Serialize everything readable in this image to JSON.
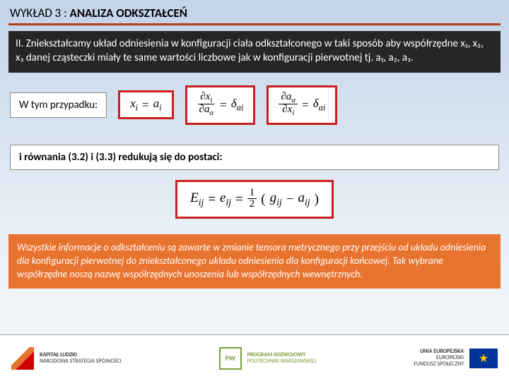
{
  "header": {
    "prefix": "WYKŁAD 3 : ",
    "title": "ANALIZA ODKSZTAŁCEŃ"
  },
  "darkbox": {
    "text": "II. Zniekształcamy układ odniesienia w konfiguracji ciała odkształconego w taki sposób aby współrzędne x₁, x₂, x₃ danej cząsteczki miały te same wartości liczbowe jak w konfiguracji pierwotnej tj. a₁, a₂, a₃."
  },
  "row1": {
    "label": "W tym przypadku:",
    "eq1": {
      "lhs_var": "x",
      "lhs_sub": "i",
      "rhs_var": "a",
      "rhs_sub": "i"
    },
    "eq2": {
      "num_d": "∂",
      "num_var": "x",
      "num_sub": "i",
      "den_d": "∂",
      "den_var": "a",
      "den_sub": "α",
      "rhs": "δ",
      "rhs_sub": "αi"
    },
    "eq3": {
      "num_d": "∂",
      "num_var": "a",
      "num_sub": "α",
      "den_d": "∂",
      "den_var": "x",
      "den_sub": "i",
      "rhs": "δ",
      "rhs_sub": "αi"
    }
  },
  "row2": {
    "label": "i równania (3.2) i (3.3) redukują się do postaci:"
  },
  "center_eq": {
    "E": "E",
    "E_sub": "ij",
    "eq": " = ",
    "e": "e",
    "e_sub": "ij",
    "half_num": "1",
    "half_den": "2",
    "g": "g",
    "g_sub": "ij",
    "minus": " − ",
    "a": "a",
    "a_sub": "ij"
  },
  "orange": {
    "text": "Wszystkie informacje o odkształceniu są zawarte w zmianie tensora metrycznego przy przejściu od układu odniesienia dla konfiguracji pierwotnej do zniekształconego układu odniesienia dla konfiguracji końcowej. Tak wybrane współrzędne noszą nazwę współrzędnych unoszenia lub współrzędnych wewnętrznych."
  },
  "footer": {
    "left1": "KAPITAŁ LUDZKI",
    "left2": "NARODOWA STRATEGIA SPÓJNOŚCI",
    "mid1": "PROGRAM ROZWOJOWY",
    "mid2": "POLITECHNIKI WARSZAWSKIEJ",
    "right1": "UNIA EUROPEJSKA",
    "right2": "EUROPEJSKI",
    "right3": "FUNDUSZ SPOŁECZNY"
  },
  "colors": {
    "accent_red": "#b33a1a",
    "box_red": "#c82020",
    "orange": "#e8732e",
    "dark": "#262626"
  }
}
